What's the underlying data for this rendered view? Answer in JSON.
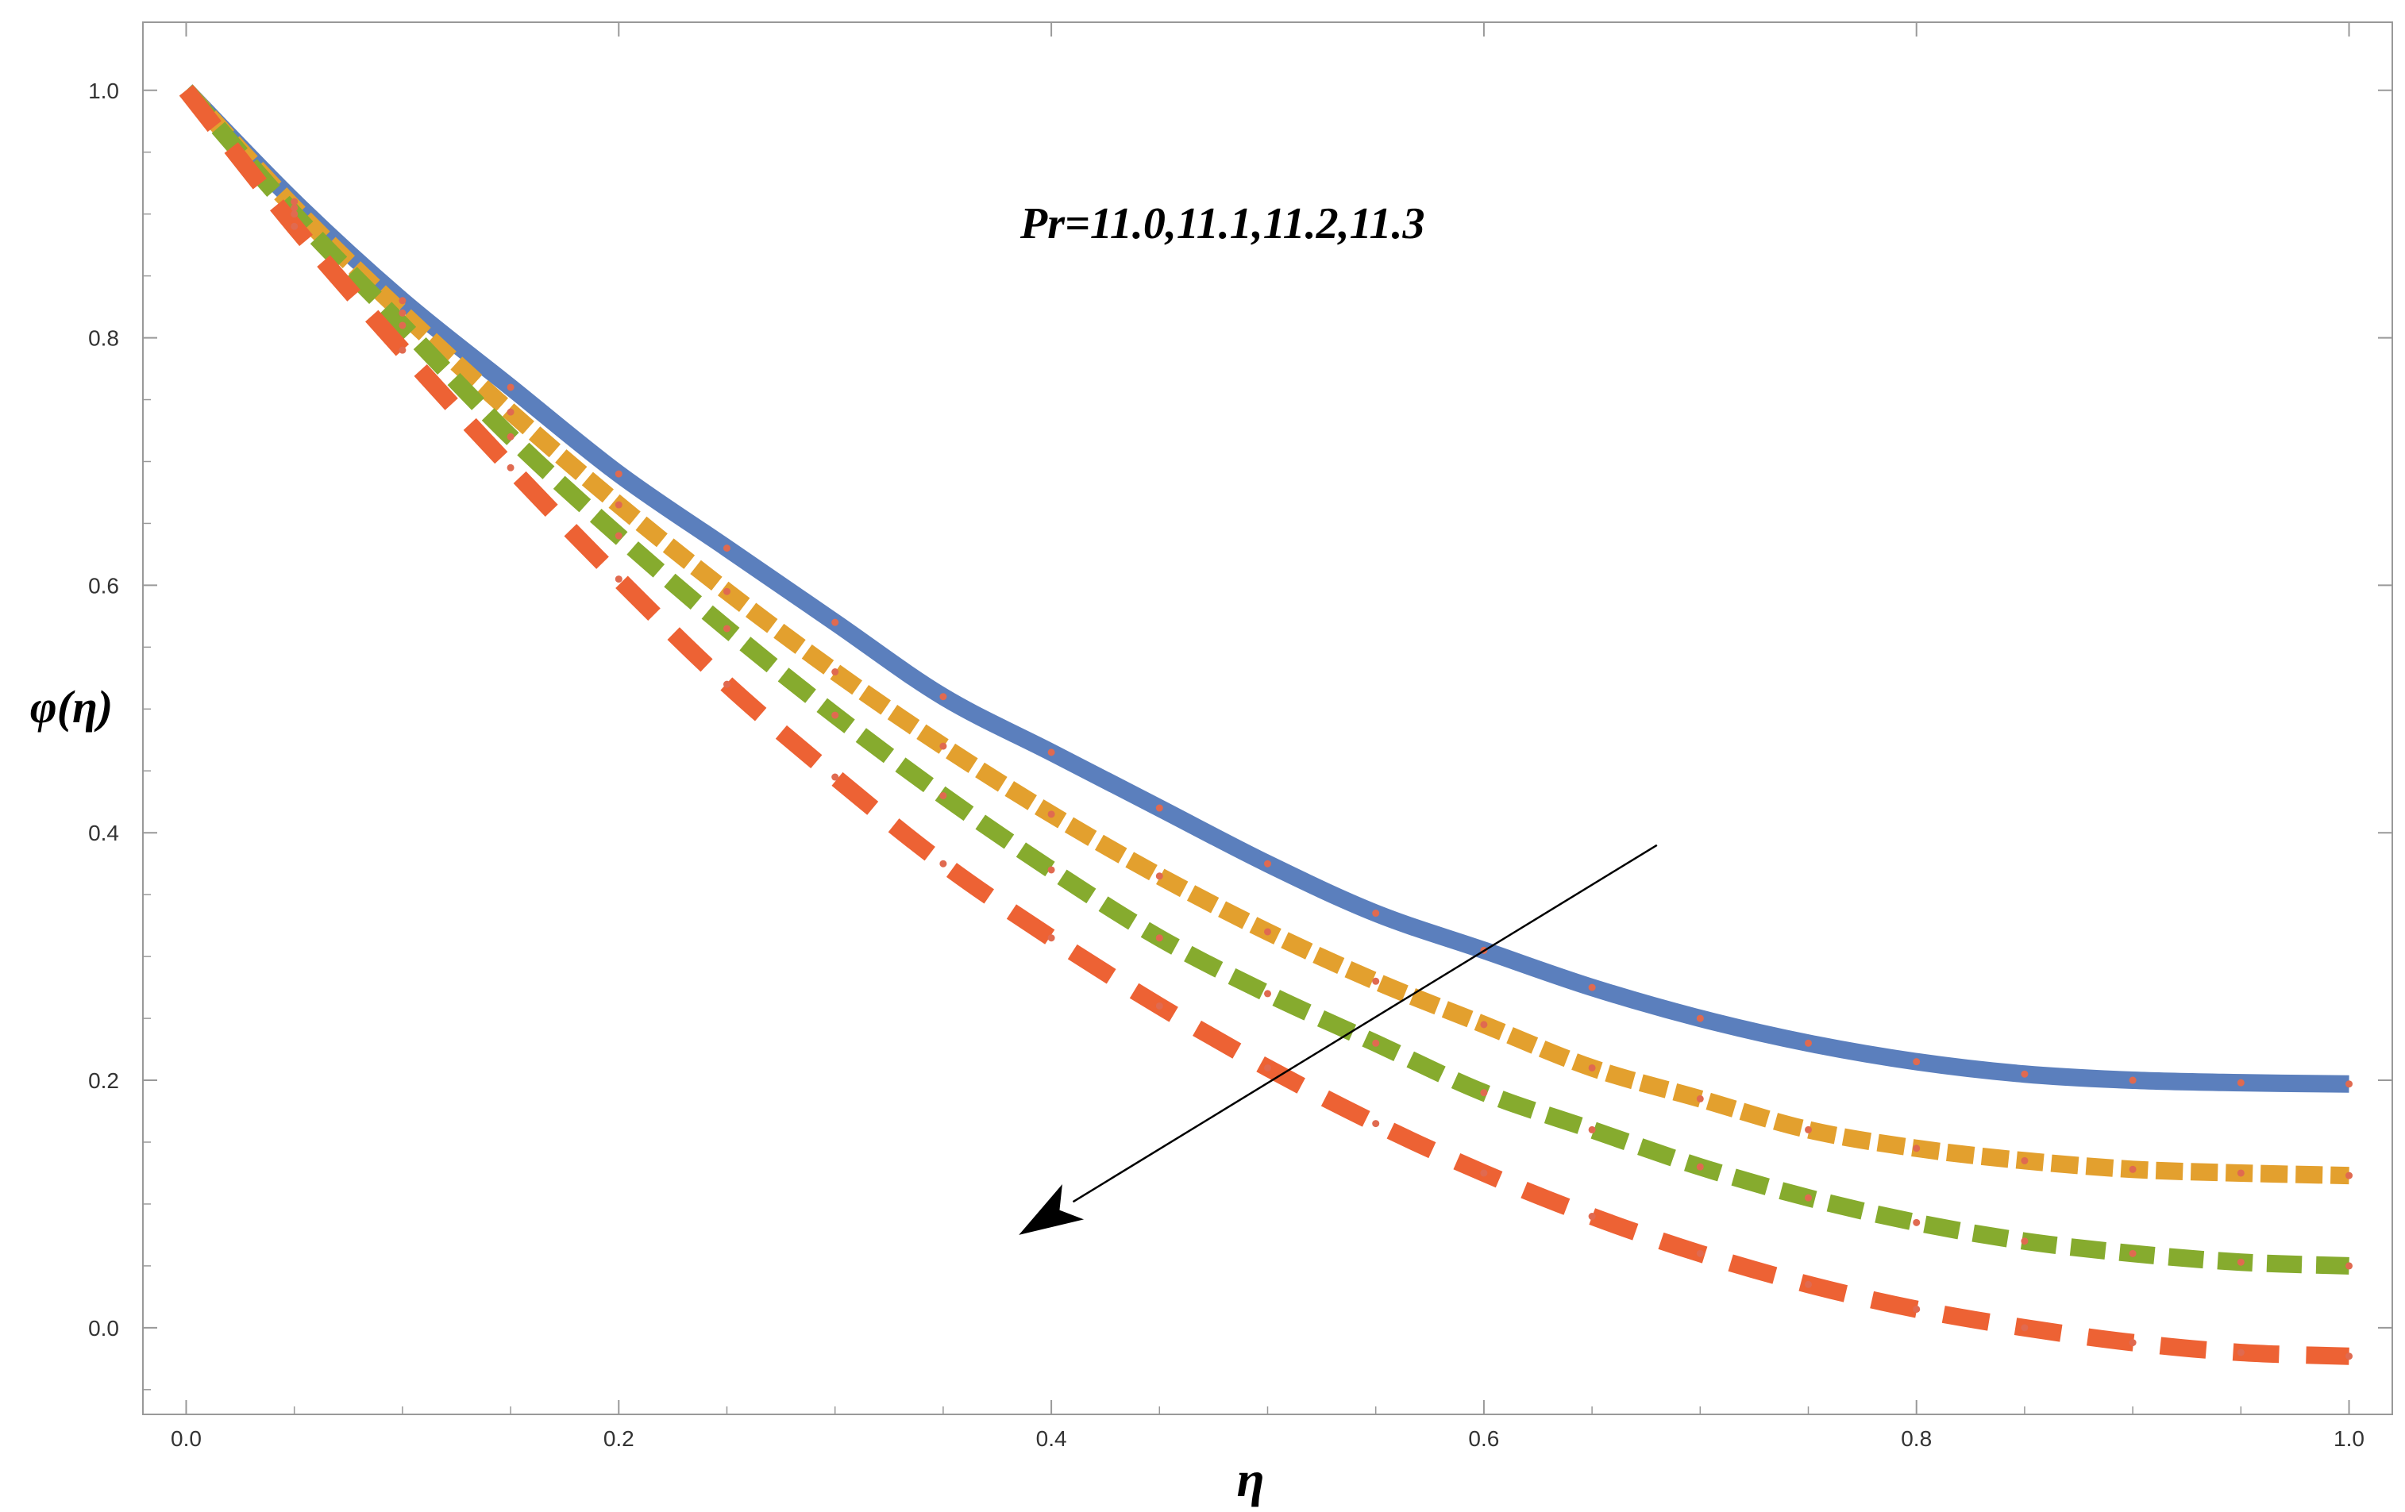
{
  "chart_data": {
    "type": "line",
    "title": "",
    "xlabel": "η",
    "ylabel": "φ(η)",
    "xlim": [
      -0.02,
      1.02
    ],
    "ylim": [
      -0.07,
      1.055
    ],
    "x_ticks": [
      0.0,
      0.2,
      0.4,
      0.6,
      0.8,
      1.0
    ],
    "x_tick_labels": [
      "0.0",
      "0.2",
      "0.4",
      "0.6",
      "0.8",
      "1.0"
    ],
    "y_ticks": [
      0.0,
      0.2,
      0.4,
      0.6,
      0.8,
      1.0
    ],
    "y_tick_labels": [
      "0.0",
      "0.2",
      "0.4",
      "0.6",
      "0.8",
      "1.0"
    ],
    "grid": false,
    "annotation": "Pr=11.0,11.1,11.2,11.3",
    "arrow": {
      "from": [
        0.68,
        0.39
      ],
      "to": [
        0.385,
        0.075
      ],
      "meaning": "increasing Pr"
    },
    "marker_color": "#e06a50",
    "series": [
      {
        "name": "Pr=11.0",
        "color": "#5b7fbd",
        "style": "solid",
        "x": [
          0.0,
          0.05,
          0.1,
          0.15,
          0.2,
          0.25,
          0.3,
          0.35,
          0.4,
          0.45,
          0.5,
          0.55,
          0.6,
          0.65,
          0.7,
          0.75,
          0.8,
          0.85,
          0.9,
          0.95,
          1.0
        ],
        "y": [
          1.0,
          0.91,
          0.83,
          0.76,
          0.69,
          0.63,
          0.57,
          0.51,
          0.465,
          0.42,
          0.375,
          0.335,
          0.305,
          0.275,
          0.25,
          0.23,
          0.215,
          0.205,
          0.2,
          0.198,
          0.197
        ]
      },
      {
        "name": "Pr=11.1",
        "color": "#e3a02e",
        "style": "dashed",
        "x": [
          0.0,
          0.05,
          0.1,
          0.15,
          0.2,
          0.25,
          0.3,
          0.35,
          0.4,
          0.45,
          0.5,
          0.55,
          0.6,
          0.65,
          0.7,
          0.75,
          0.8,
          0.85,
          0.9,
          0.95,
          1.0
        ],
        "y": [
          1.0,
          0.905,
          0.82,
          0.74,
          0.665,
          0.595,
          0.53,
          0.47,
          0.415,
          0.365,
          0.32,
          0.28,
          0.245,
          0.21,
          0.185,
          0.16,
          0.145,
          0.135,
          0.128,
          0.125,
          0.123
        ]
      },
      {
        "name": "Pr=11.2",
        "color": "#86ab2e",
        "style": "dashed",
        "x": [
          0.0,
          0.05,
          0.1,
          0.15,
          0.2,
          0.25,
          0.3,
          0.35,
          0.4,
          0.45,
          0.5,
          0.55,
          0.6,
          0.65,
          0.7,
          0.75,
          0.8,
          0.85,
          0.9,
          0.95,
          1.0
        ],
        "y": [
          1.0,
          0.9,
          0.81,
          0.72,
          0.64,
          0.565,
          0.495,
          0.43,
          0.37,
          0.315,
          0.27,
          0.23,
          0.19,
          0.16,
          0.13,
          0.105,
          0.085,
          0.07,
          0.06,
          0.053,
          0.05
        ]
      },
      {
        "name": "Pr=11.3",
        "color": "#ed6234",
        "style": "dashed",
        "x": [
          0.0,
          0.05,
          0.1,
          0.15,
          0.2,
          0.25,
          0.3,
          0.35,
          0.4,
          0.45,
          0.5,
          0.55,
          0.6,
          0.65,
          0.7,
          0.75,
          0.8,
          0.85,
          0.9,
          0.95,
          1.0
        ],
        "y": [
          1.0,
          0.89,
          0.79,
          0.695,
          0.605,
          0.52,
          0.445,
          0.375,
          0.315,
          0.26,
          0.21,
          0.165,
          0.125,
          0.09,
          0.06,
          0.035,
          0.015,
          0.0,
          -0.012,
          -0.02,
          -0.023
        ]
      }
    ]
  }
}
